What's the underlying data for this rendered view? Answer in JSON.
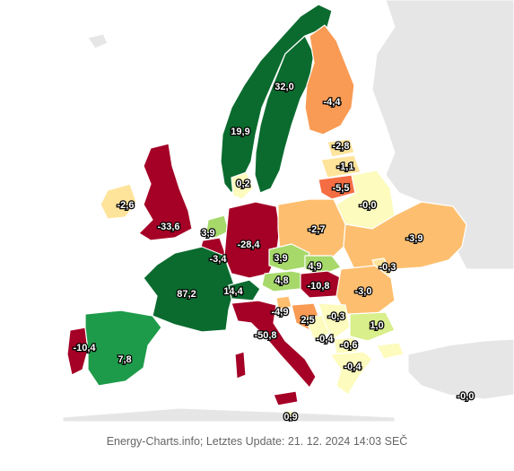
{
  "map": {
    "labels": {
      "norway": "32,0",
      "sweden": "19,9",
      "finland": "-4,4",
      "estonia": "-2,8",
      "latvia": "-1,1",
      "lithuania": "-5,5",
      "belarus": "-0,0",
      "denmark": "0,2",
      "ireland": "-2,6",
      "great_britain": "-33,6",
      "netherlands": "3,9",
      "belgium": "-3,4",
      "germany": "-28,4",
      "poland": "-2,7",
      "ukraine": "-3,9",
      "czechia": "3,9",
      "slovakia": "4,9",
      "austria": "4,8",
      "hungary": "-10,8",
      "moldova": "-0,3",
      "romania": "-3,0",
      "france": "87,2",
      "switzerland": "14,4",
      "slovenia": "-4,9",
      "italy": "-50,8",
      "croatia": "2,5",
      "serbia": "-0,3",
      "bulgaria": "1,0",
      "bosnia": "-0,4",
      "north_macedonia": "-0,6",
      "greece": "-0,4",
      "portugal": "-10,4",
      "spain": "7,8",
      "turkey": "-0,0",
      "malta": "0,9"
    },
    "colors": {
      "dark_green": "#0b6b2f",
      "green": "#1e9b4a",
      "light_green": "#a6d96a",
      "pale_yellow": "#fdfbbd",
      "light_yellow": "#fee39a",
      "light_orange": "#fdbf6f",
      "orange": "#f99b54",
      "red_orange": "#f46d43",
      "dark_red": "#a50026",
      "background_land": "#e6e6e6"
    }
  },
  "footer": {
    "text": "Energy-Charts.info; Letztes Update: 21. 12. 2024 14:03 SEČ"
  }
}
